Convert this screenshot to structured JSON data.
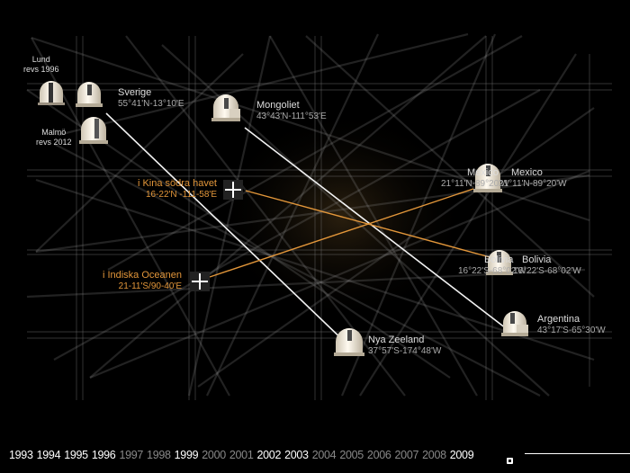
{
  "places": {
    "sverige": {
      "name": "Sverige",
      "coord": "55°41'N-13°10'E"
    },
    "lund": {
      "name": "Lund",
      "note": "revs 1996"
    },
    "malmo": {
      "name": "Malmö",
      "note": "revs 2012"
    },
    "mongoliet": {
      "name": "Mongoliet",
      "coord": "43°43'N-111°53'E"
    },
    "mexico_a": {
      "name": "Mexico",
      "coord": "21°11'N-89°20'W"
    },
    "mexico_b": {
      "name": "Mexico",
      "coord": "21°11'N-89°20'W"
    },
    "bolivia_a": {
      "name": "Bolivia",
      "coord": "16°22'S-68°02'W"
    },
    "bolivia_b": {
      "name": "Bolivia",
      "coord": "16°22'S-68°02'W"
    },
    "argentina": {
      "name": "Argentina",
      "coord": "43°17'S-65°30'W"
    },
    "nyazeeland": {
      "name": "Nya Zeeland",
      "coord": "37°57'S-174°48'W"
    },
    "kina": {
      "name": "i Kina södra havet",
      "coord": "16-22'N -111-58'E"
    },
    "indiska": {
      "name": "i Indiska Oceanen",
      "coord": "21-11'S/90-40'E"
    }
  },
  "timeline": {
    "years": [
      {
        "label": "1993",
        "state": "on"
      },
      {
        "label": "1994",
        "state": "on"
      },
      {
        "label": "1995",
        "state": "on"
      },
      {
        "label": "1996",
        "state": "on"
      },
      {
        "label": "1997",
        "state": "off"
      },
      {
        "label": "1998",
        "state": "off"
      },
      {
        "label": "1999",
        "state": "on"
      },
      {
        "label": "2000",
        "state": "off"
      },
      {
        "label": "2001",
        "state": "off"
      },
      {
        "label": "2002",
        "state": "on"
      },
      {
        "label": "2003",
        "state": "on"
      },
      {
        "label": "2004",
        "state": "off"
      },
      {
        "label": "2005",
        "state": "off"
      },
      {
        "label": "2006",
        "state": "off"
      },
      {
        "label": "2007",
        "state": "off"
      },
      {
        "label": "2008",
        "state": "off"
      },
      {
        "label": "2009",
        "state": "on"
      }
    ]
  },
  "colors": {
    "accent": "#e2963a",
    "background": "#000000",
    "text": "#ffffff"
  },
  "icons": {
    "observatory": "observatory-dome-icon",
    "crosshair": "crosshair-icon"
  }
}
